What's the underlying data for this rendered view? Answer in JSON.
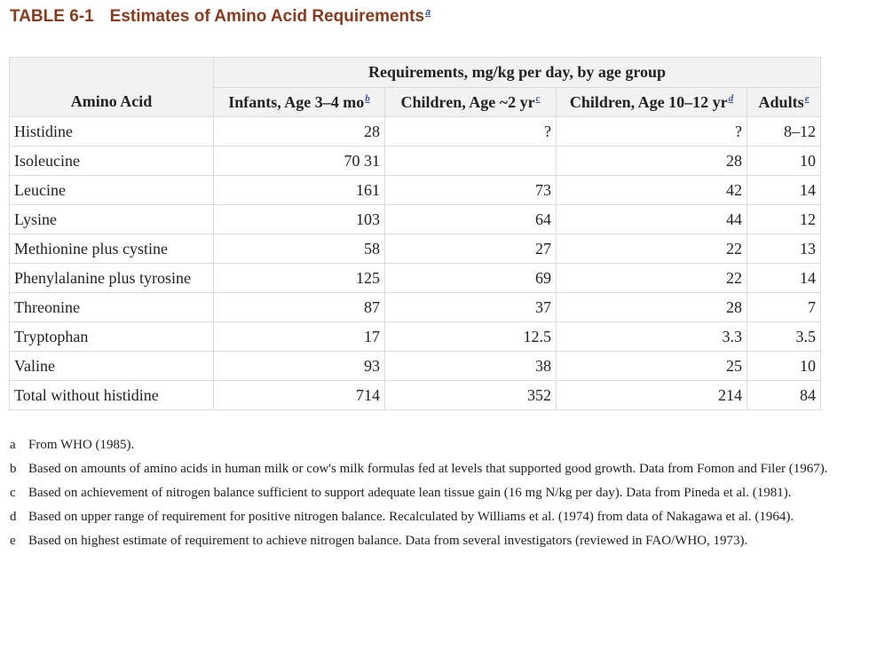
{
  "title": {
    "number": "TABLE 6-1",
    "text": "Estimates of Amino Acid Requirements",
    "footnote_mark": "a"
  },
  "table": {
    "group_header": "Requirements, mg/kg per day, by age group",
    "columns": [
      {
        "label": "Amino Acid",
        "mark": ""
      },
      {
        "label": "Infants, Age 3–4 mo",
        "mark": "b"
      },
      {
        "label": "Children, Age ~2 yr",
        "mark": "c"
      },
      {
        "label": "Children, Age 10–12 yr",
        "mark": "d"
      },
      {
        "label": "Adults",
        "mark": "e"
      }
    ],
    "rows": [
      {
        "name": "Histidine",
        "infants": "28",
        "children2": "?",
        "children10": "?",
        "adults": "8–12"
      },
      {
        "name": "Isoleucine",
        "infants": "70 31",
        "children2": "",
        "children10": "28",
        "adults": "10"
      },
      {
        "name": "Leucine",
        "infants": "161",
        "children2": "73",
        "children10": "42",
        "adults": "14"
      },
      {
        "name": "Lysine",
        "infants": "103",
        "children2": "64",
        "children10": "44",
        "adults": "12"
      },
      {
        "name": "Methionine plus cystine",
        "infants": "58",
        "children2": "27",
        "children10": "22",
        "adults": "13"
      },
      {
        "name": "Phenylalanine plus tyrosine",
        "infants": "125",
        "children2": "69",
        "children10": "22",
        "adults": "14"
      },
      {
        "name": "Threonine",
        "infants": "87",
        "children2": "37",
        "children10": "28",
        "adults": "7"
      },
      {
        "name": "Tryptophan",
        "infants": "17",
        "children2": "12.5",
        "children10": "3.3",
        "adults": "3.5"
      },
      {
        "name": "Valine",
        "infants": "93",
        "children2": "38",
        "children10": "25",
        "adults": "10"
      },
      {
        "name": "Total without histidine",
        "infants": "714",
        "children2": "352",
        "children10": "214",
        "adults": "84"
      }
    ]
  },
  "footnotes": [
    {
      "label": "a",
      "text": "From WHO (1985)."
    },
    {
      "label": "b",
      "text": "Based on amounts of amino acids in human milk or cow's milk formulas fed at levels that supported good growth. Data from Fomon and Filer (1967)."
    },
    {
      "label": "c",
      "text": "Based on achievement of nitrogen balance sufficient to support adequate lean tissue gain (16 mg N/kg per day). Data from Pineda et al. (1981)."
    },
    {
      "label": "d",
      "text": "Based on upper range of requirement for positive nitrogen balance. Recalculated by Williams et al. (1974) from data of Nakagawa et al. (1964)."
    },
    {
      "label": "e",
      "text": "Based on highest estimate of requirement to achieve nitrogen balance. Data from several investigators (reviewed in FAO/WHO, 1973)."
    }
  ],
  "colors": {
    "title": "#8a3a1c",
    "link": "#3355aa",
    "header_bg": "#f2f2f2",
    "border": "#dcdcdc"
  }
}
